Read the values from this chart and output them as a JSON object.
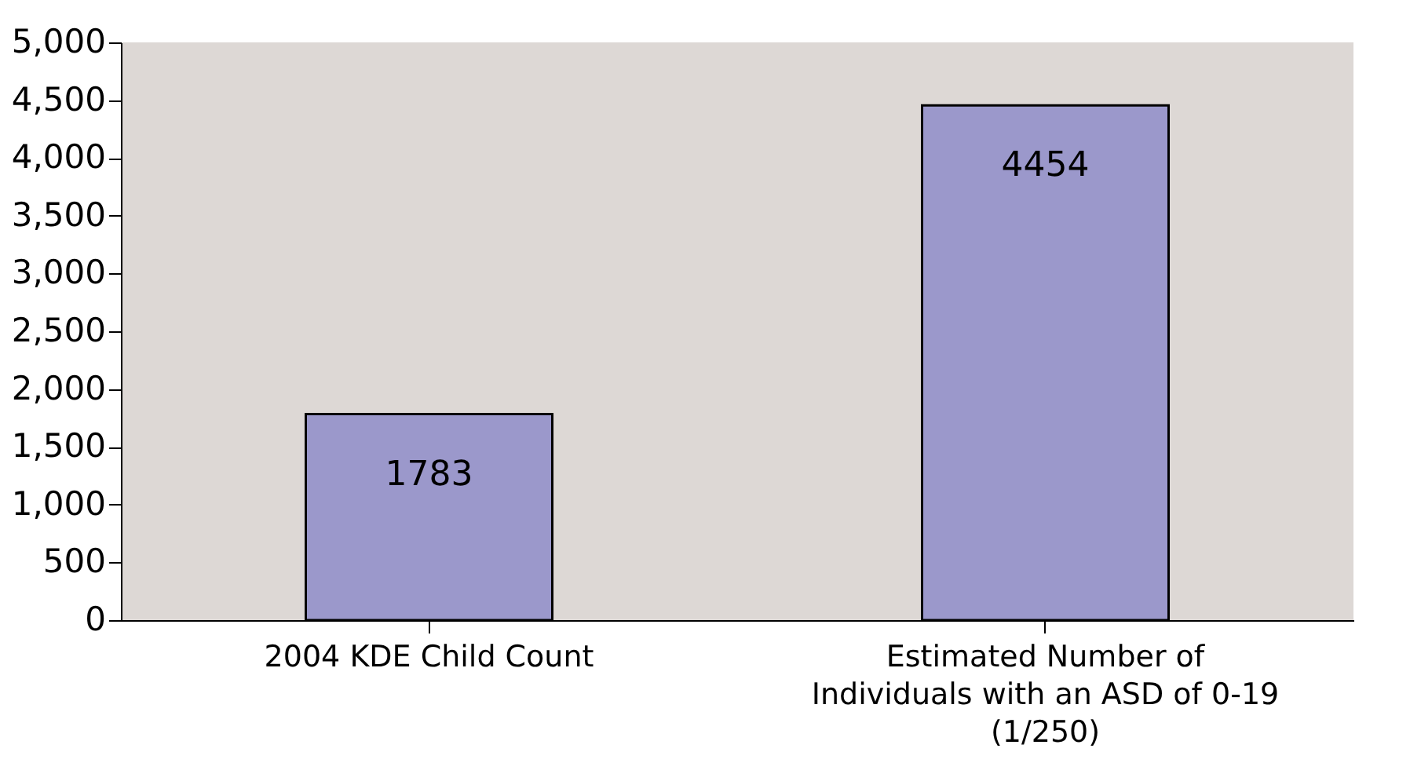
{
  "chart_data": {
    "type": "bar",
    "categories": [
      "2004 KDE Child Count",
      "Estimated Number of\nIndividuals with an ASD of 0-19\n(1/250)"
    ],
    "values": [
      1783,
      4454
    ],
    "color": "#9b98cb",
    "ylim": [
      0,
      5000
    ],
    "yticks": [
      0,
      500,
      {
        "value": 1000,
        "label": "1,000"
      },
      {
        "value": 1500,
        "label": "1,500"
      },
      {
        "value": 2000,
        "label": "2,000"
      },
      {
        "value": 2500,
        "label": "2,500"
      },
      {
        "value": 3000,
        "label": "3,000"
      },
      {
        "value": 3500,
        "label": "3,500"
      },
      {
        "value": 4000,
        "label": "4,000"
      },
      {
        "value": 4500,
        "label": "4,500"
      },
      {
        "value": 5000,
        "label": "5,000"
      }
    ],
    "grid": false,
    "data_labels": true
  }
}
